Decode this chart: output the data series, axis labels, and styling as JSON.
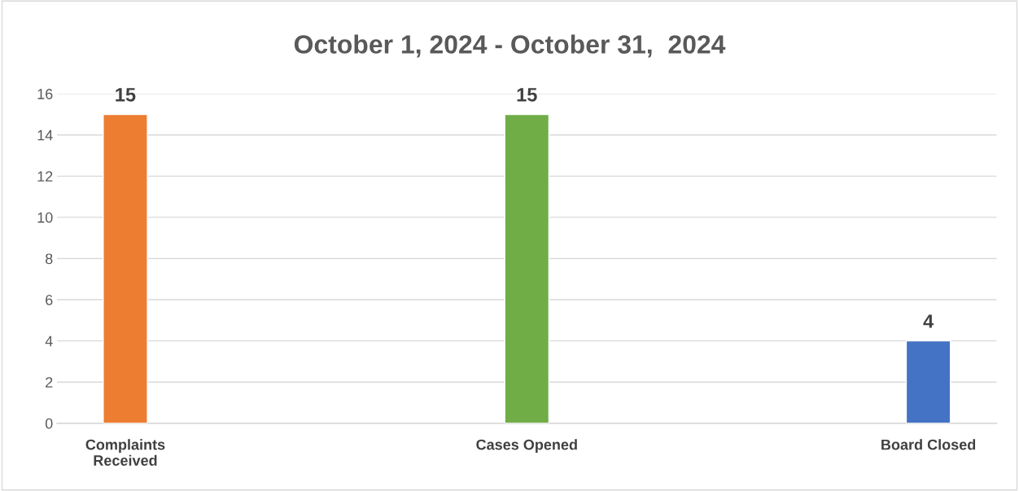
{
  "chart_data": {
    "type": "bar",
    "title": "October 1, 2024 - October 31,  2024",
    "categories": [
      "Complaints Received",
      "Cases Opened",
      "Board Closed"
    ],
    "values": [
      15,
      15,
      4
    ],
    "colors": [
      "#ed7d31",
      "#70ad47",
      "#4472c4"
    ],
    "ylim": [
      0,
      16
    ],
    "yticks": [
      0,
      2,
      4,
      6,
      8,
      10,
      12,
      14,
      16
    ],
    "grid": "y",
    "data_labels": true,
    "legend": false
  }
}
